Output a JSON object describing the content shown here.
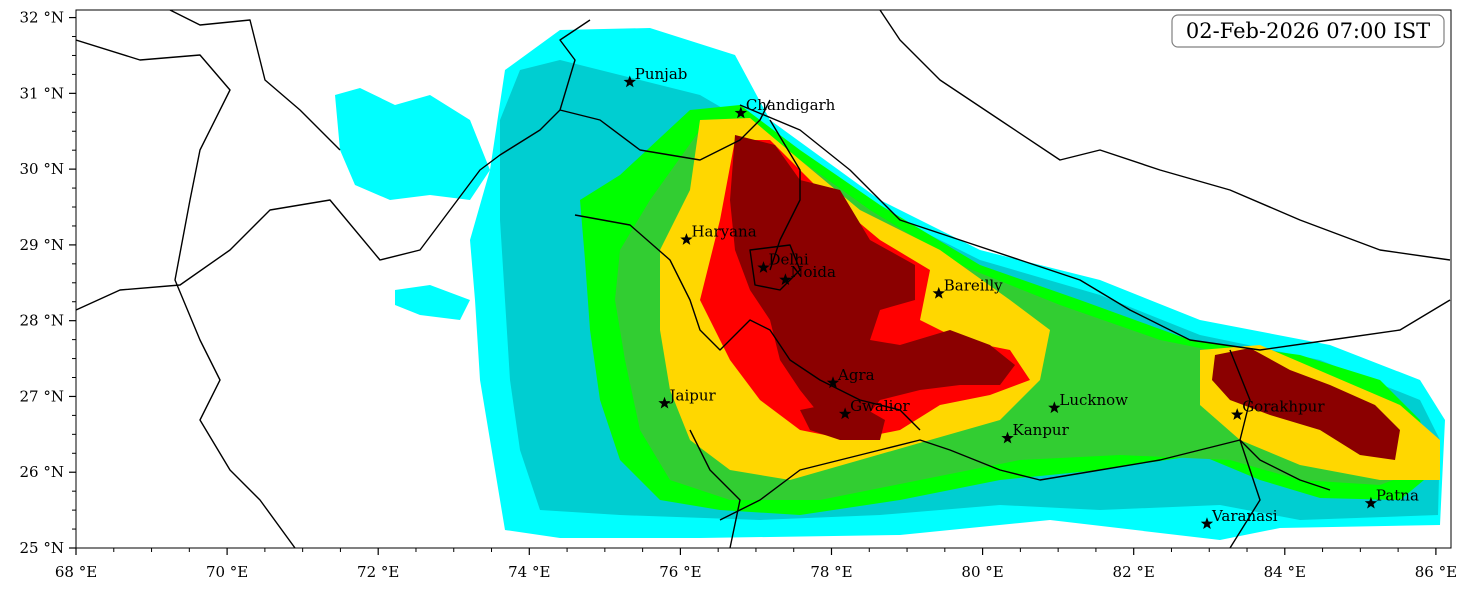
{
  "timestamp": "02-Feb-2026 07:00 IST",
  "axes": {
    "lon_min": 68,
    "lon_max": 86.2,
    "lat_min": 25,
    "lat_max": 32.1,
    "x_ticks": [
      {
        "value": 68,
        "label": "68 °E"
      },
      {
        "value": 70,
        "label": "70 °E"
      },
      {
        "value": 72,
        "label": "72 °E"
      },
      {
        "value": 74,
        "label": "74 °E"
      },
      {
        "value": 76,
        "label": "76 °E"
      },
      {
        "value": 78,
        "label": "78 °E"
      },
      {
        "value": 80,
        "label": "80 °E"
      },
      {
        "value": 82,
        "label": "82 °E"
      },
      {
        "value": 84,
        "label": "84 °E"
      },
      {
        "value": 86,
        "label": "86 °E"
      }
    ],
    "y_ticks": [
      {
        "value": 25,
        "label": "25 °N"
      },
      {
        "value": 26,
        "label": "26 °N"
      },
      {
        "value": 27,
        "label": "27 °N"
      },
      {
        "value": 28,
        "label": "28 °N"
      },
      {
        "value": 29,
        "label": "29 °N"
      },
      {
        "value": 30,
        "label": "30 °N"
      },
      {
        "value": 31,
        "label": "31 °N"
      },
      {
        "value": 32,
        "label": "32 °N"
      }
    ]
  },
  "shading_colors": [
    "#00ffff",
    "#00ced1",
    "#00ff00",
    "#32cd32",
    "#ffd700",
    "#ff0000",
    "#8b0000"
  ],
  "cities": [
    {
      "name": "Punjab",
      "lon": 75.33,
      "lat": 31.15
    },
    {
      "name": "Chandigarh",
      "lon": 76.8,
      "lat": 30.74
    },
    {
      "name": "Haryana",
      "lon": 76.08,
      "lat": 29.07
    },
    {
      "name": "Delhi",
      "lon": 77.1,
      "lat": 28.7
    },
    {
      "name": "Noida",
      "lon": 77.39,
      "lat": 28.54
    },
    {
      "name": "Bareilly",
      "lon": 79.42,
      "lat": 28.36
    },
    {
      "name": "Agra",
      "lon": 78.02,
      "lat": 27.18
    },
    {
      "name": "Jaipur",
      "lon": 75.79,
      "lat": 26.91
    },
    {
      "name": "Gwalior",
      "lon": 78.18,
      "lat": 26.77
    },
    {
      "name": "Lucknow",
      "lon": 80.95,
      "lat": 26.85
    },
    {
      "name": "Kanpur",
      "lon": 80.33,
      "lat": 26.45
    },
    {
      "name": "Gorakhpur",
      "lon": 83.37,
      "lat": 26.76
    },
    {
      "name": "Varanasi",
      "lon": 82.97,
      "lat": 25.32
    },
    {
      "name": "Patna",
      "lon": 85.14,
      "lat": 25.59
    }
  ]
}
